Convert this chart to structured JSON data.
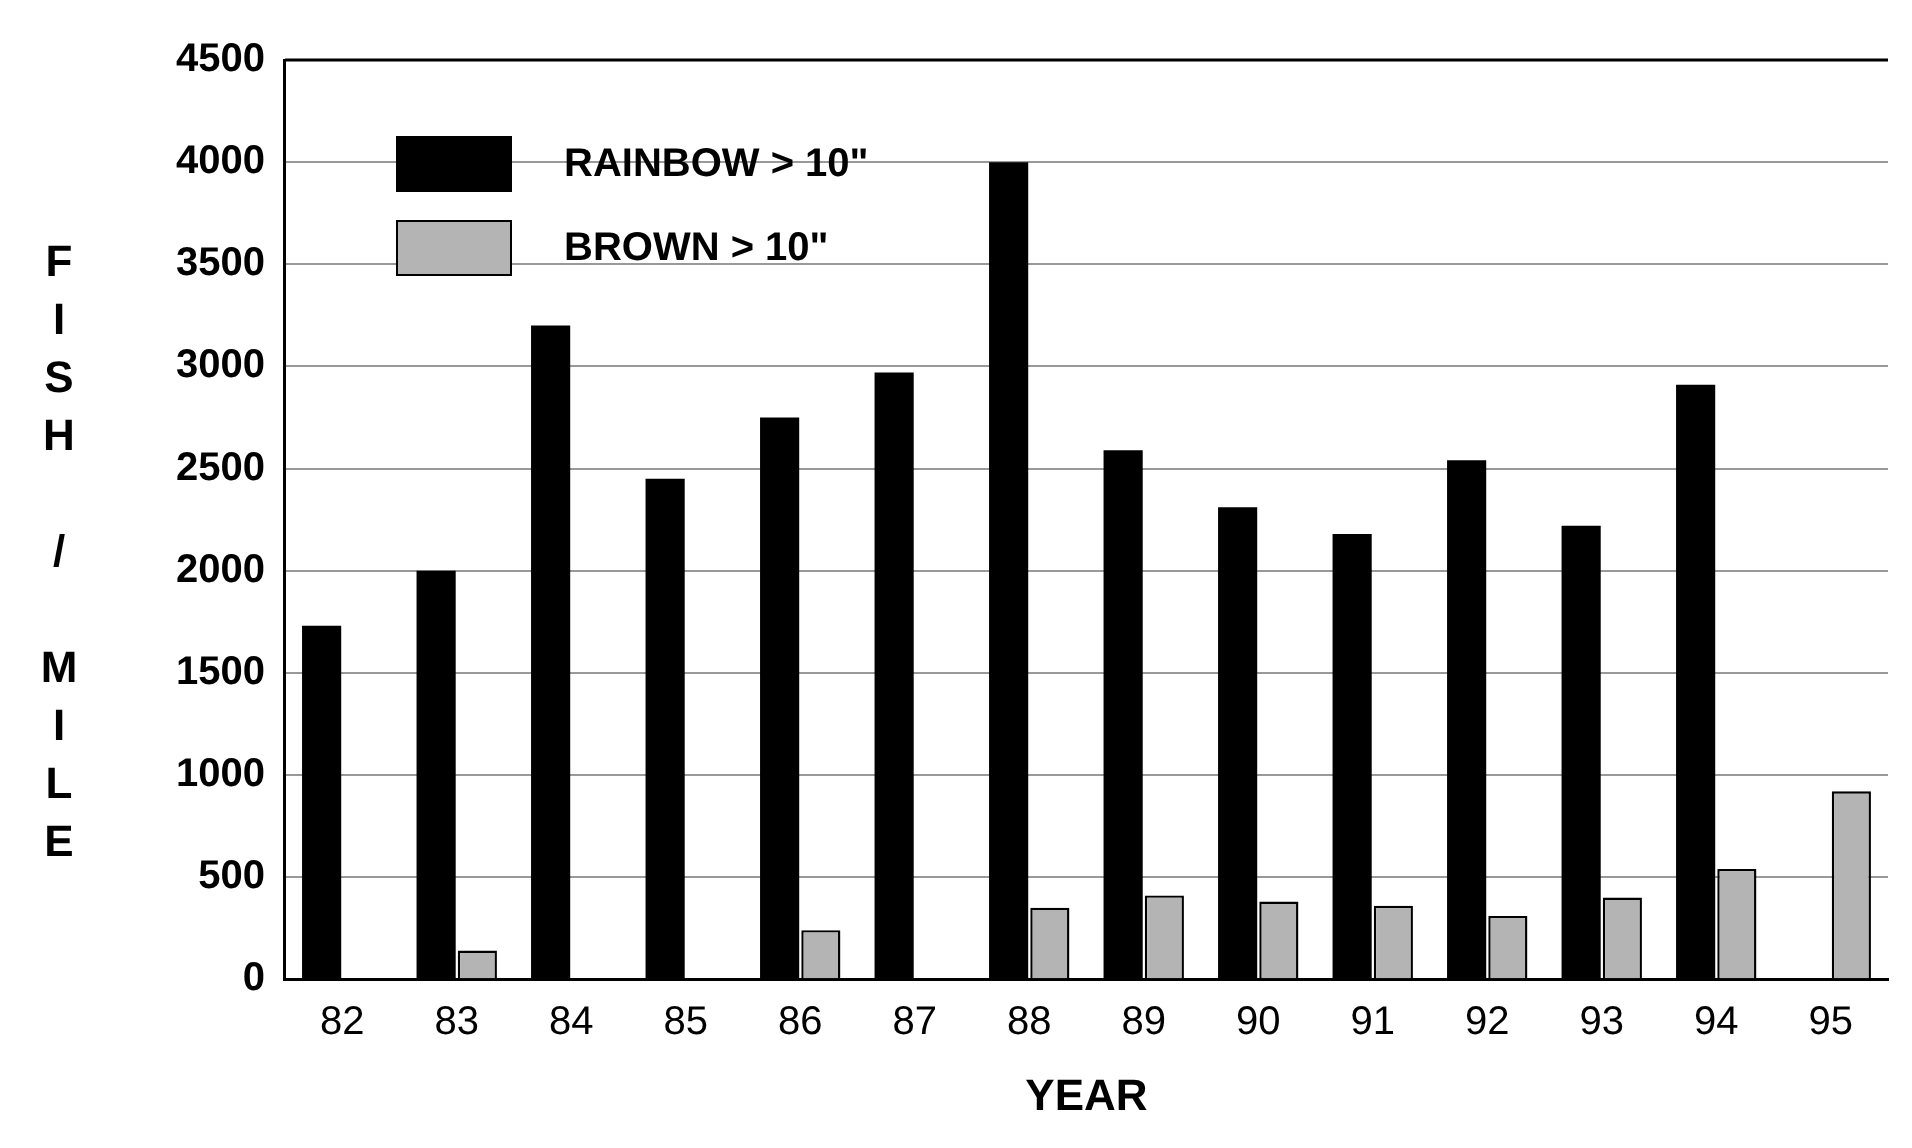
{
  "chart_data": {
    "type": "bar",
    "xlabel": "YEAR",
    "ylabel": "FISH / MILE",
    "categories": [
      "82",
      "83",
      "84",
      "85",
      "86",
      "87",
      "88",
      "89",
      "90",
      "91",
      "92",
      "93",
      "94",
      "95"
    ],
    "series": [
      {
        "name": "RAINBOW > 10\"",
        "color": "#000000",
        "values": [
          1730,
          2000,
          3200,
          2450,
          2750,
          2970,
          4000,
          2590,
          2310,
          2180,
          2540,
          2220,
          2910,
          null
        ]
      },
      {
        "name": "BROWN > 10\"",
        "color": "#b4b4b4",
        "values": [
          null,
          140,
          null,
          null,
          240,
          null,
          350,
          410,
          380,
          360,
          310,
          400,
          540,
          920
        ]
      }
    ],
    "ylim": [
      0,
      4500
    ],
    "yticks": [
      0,
      500,
      1000,
      1500,
      2000,
      2500,
      3000,
      3500,
      4000,
      4500
    ],
    "grid": "y",
    "legend": "top left"
  }
}
